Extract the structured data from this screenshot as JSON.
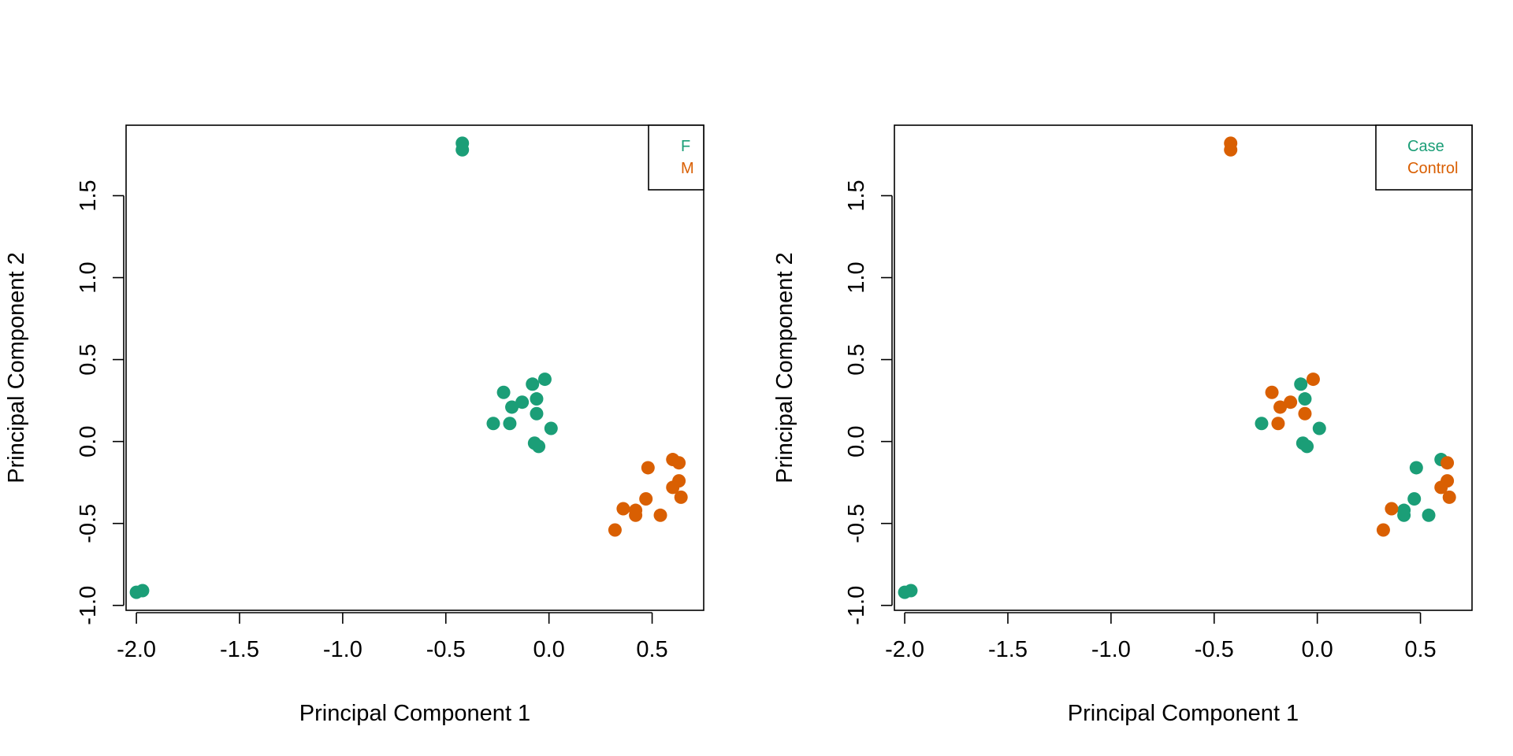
{
  "colors": {
    "teal": "#1b9e77",
    "orange": "#d95f02",
    "axis": "#000000",
    "background": "#ffffff"
  },
  "chart_data": [
    {
      "type": "scatter",
      "xlabel": "Principal Component 1",
      "ylabel": "Principal Component 2",
      "xlim": [
        -2.05,
        0.75
      ],
      "ylim": [
        -1.03,
        1.93
      ],
      "xticks": [
        -2.0,
        -1.5,
        -1.0,
        -0.5,
        0.0,
        0.5
      ],
      "xtick_labels": [
        "-2.0",
        "-1.5",
        "-1.0",
        "-0.5",
        "0.0",
        "0.5"
      ],
      "yticks": [
        -1.0,
        -0.5,
        0.0,
        0.5,
        1.0,
        1.5
      ],
      "ytick_labels": [
        "-1.0",
        "-0.5",
        "0.0",
        "0.5",
        "1.0",
        "1.5"
      ],
      "grid": false,
      "legend_position": "top-right",
      "series": [
        {
          "name": "F",
          "color": "#1b9e77",
          "points": [
            [
              -0.42,
              1.82
            ],
            [
              -0.42,
              1.78
            ],
            [
              -0.02,
              0.38
            ],
            [
              -0.08,
              0.35
            ],
            [
              -0.22,
              0.3
            ],
            [
              -0.06,
              0.26
            ],
            [
              -0.13,
              0.24
            ],
            [
              -0.18,
              0.21
            ],
            [
              -0.06,
              0.17
            ],
            [
              -0.27,
              0.11
            ],
            [
              -0.19,
              0.11
            ],
            [
              0.01,
              0.08
            ],
            [
              -0.07,
              -0.01
            ],
            [
              -0.05,
              -0.03
            ],
            [
              -2.0,
              -0.92
            ],
            [
              -1.97,
              -0.91
            ]
          ]
        },
        {
          "name": "M",
          "color": "#d95f02",
          "points": [
            [
              0.6,
              -0.11
            ],
            [
              0.63,
              -0.13
            ],
            [
              0.48,
              -0.16
            ],
            [
              0.63,
              -0.24
            ],
            [
              0.6,
              -0.28
            ],
            [
              0.64,
              -0.34
            ],
            [
              0.47,
              -0.35
            ],
            [
              0.36,
              -0.41
            ],
            [
              0.42,
              -0.42
            ],
            [
              0.42,
              -0.45
            ],
            [
              0.54,
              -0.45
            ],
            [
              0.32,
              -0.54
            ]
          ]
        }
      ]
    },
    {
      "type": "scatter",
      "xlabel": "Principal Component 1",
      "ylabel": "Principal Component 2",
      "xlim": [
        -2.05,
        0.75
      ],
      "ylim": [
        -1.03,
        1.93
      ],
      "xticks": [
        -2.0,
        -1.5,
        -1.0,
        -0.5,
        0.0,
        0.5
      ],
      "xtick_labels": [
        "-2.0",
        "-1.5",
        "-1.0",
        "-0.5",
        "0.0",
        "0.5"
      ],
      "yticks": [
        -1.0,
        -0.5,
        0.0,
        0.5,
        1.0,
        1.5
      ],
      "ytick_labels": [
        "-1.0",
        "-0.5",
        "0.0",
        "0.5",
        "1.0",
        "1.5"
      ],
      "grid": false,
      "legend_position": "top-right",
      "series": [
        {
          "name": "Case",
          "color": "#1b9e77",
          "points": [
            [
              -0.08,
              0.35
            ],
            [
              -0.06,
              0.26
            ],
            [
              -0.27,
              0.11
            ],
            [
              0.01,
              0.08
            ],
            [
              -0.07,
              -0.01
            ],
            [
              -0.05,
              -0.03
            ],
            [
              0.6,
              -0.11
            ],
            [
              0.48,
              -0.16
            ],
            [
              0.47,
              -0.35
            ],
            [
              0.42,
              -0.42
            ],
            [
              0.42,
              -0.45
            ],
            [
              0.54,
              -0.45
            ],
            [
              -2.0,
              -0.92
            ],
            [
              -1.97,
              -0.91
            ]
          ]
        },
        {
          "name": "Control",
          "color": "#d95f02",
          "points": [
            [
              -0.42,
              1.82
            ],
            [
              -0.42,
              1.78
            ],
            [
              -0.02,
              0.38
            ],
            [
              -0.22,
              0.3
            ],
            [
              -0.13,
              0.24
            ],
            [
              -0.18,
              0.21
            ],
            [
              -0.06,
              0.17
            ],
            [
              -0.19,
              0.11
            ],
            [
              0.63,
              -0.13
            ],
            [
              0.63,
              -0.24
            ],
            [
              0.6,
              -0.28
            ],
            [
              0.64,
              -0.34
            ],
            [
              0.36,
              -0.41
            ],
            [
              0.32,
              -0.54
            ]
          ]
        }
      ]
    }
  ]
}
